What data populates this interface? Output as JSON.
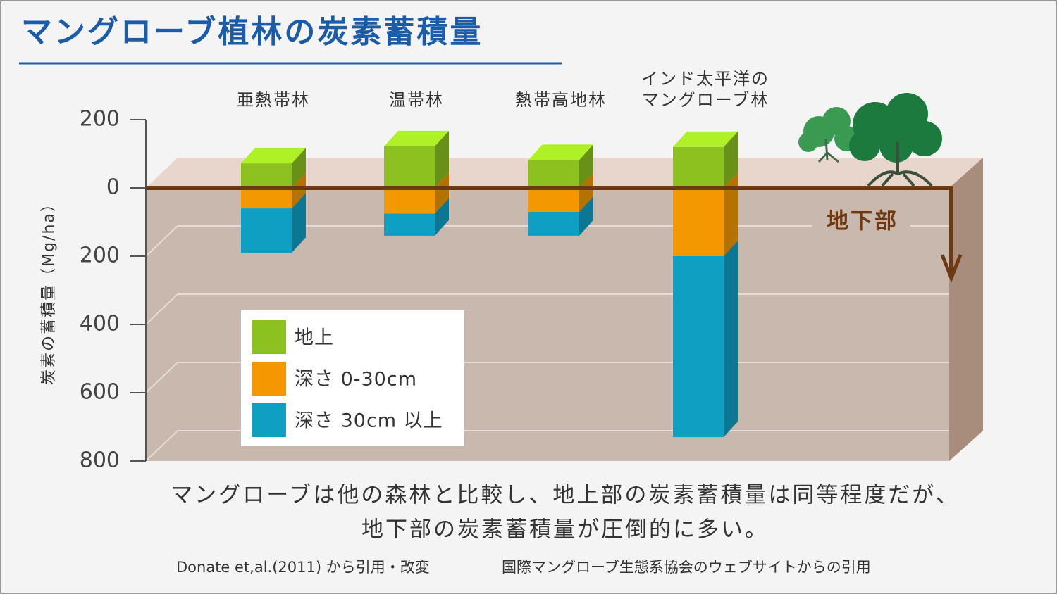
{
  "chart_data": {
    "type": "bar",
    "title": "マングローブ植林の炭素蓄積量",
    "y_label": "炭素の蓄積量（Mg/ha）",
    "categories": [
      "亜熱帯林",
      "温帯林",
      "熱帯高地林",
      "インド太平洋の\nマングローブ林"
    ],
    "series": [
      {
        "name": "地上",
        "color": "#8cc11f",
        "values": [
          72,
          122,
          82,
          120
        ]
      },
      {
        "name": "深さ 0-30cm",
        "color": "#f39800",
        "values": [
          -60,
          -75,
          -70,
          -200
        ]
      },
      {
        "name": "深さ 30cm 以上",
        "color": "#0f9fc3",
        "values": [
          -130,
          -65,
          -70,
          -530
        ]
      }
    ],
    "ylim": [
      -800,
      200
    ],
    "yticks": [
      {
        "value": -800,
        "label": "800"
      },
      {
        "value": -600,
        "label": "600"
      },
      {
        "value": -400,
        "label": "400"
      },
      {
        "value": -200,
        "label": "200"
      },
      0,
      200
    ],
    "grid": true,
    "annotation": "地下部",
    "caption": [
      "マングローブは他の森林と比較し、地上部の炭素蓄積量は同等程度だが、",
      "地下部の炭素蓄積量が圧倒的に多い。"
    ],
    "source": [
      "Donate et,al.(2011) から引用・改変",
      "国際マングローブ生態系協会のウェブサイトからの引用"
    ]
  }
}
